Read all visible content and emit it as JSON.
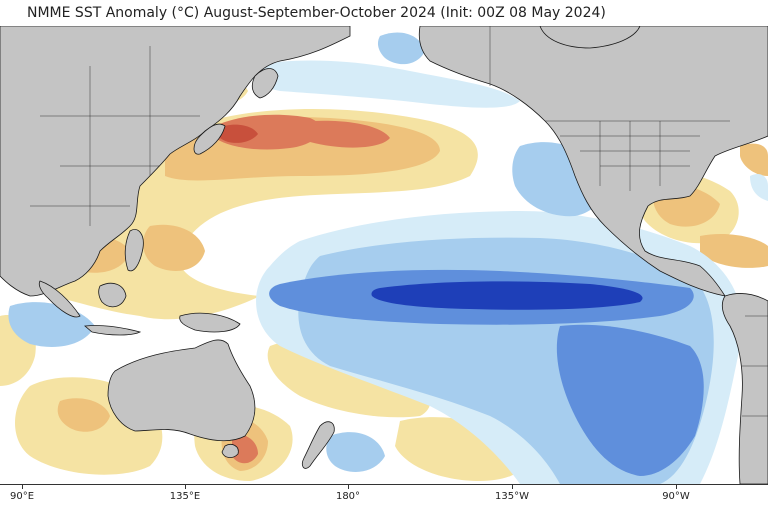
{
  "title": "NMME SST Anomaly (°C) August-September-October 2024 (Init: 00Z 08 May 2024)",
  "x_axis": {
    "tick_labels": [
      "90°E",
      "135°E",
      "180°",
      "135°W",
      "90°W"
    ]
  },
  "colors": {
    "land": "#c4c4c4",
    "coast": "#1a1a1a",
    "ocean_neutral": "#ffffff",
    "warm_light": "#f5e3a3",
    "warm_mid": "#eec27c",
    "warm_strong": "#dc7a5a",
    "warm_max": "#c8503c",
    "cool_light": "#d6ecf8",
    "cool_mid": "#a6cdee",
    "cool_strong": "#5f8fdc",
    "cool_max": "#1e3fb8"
  }
}
